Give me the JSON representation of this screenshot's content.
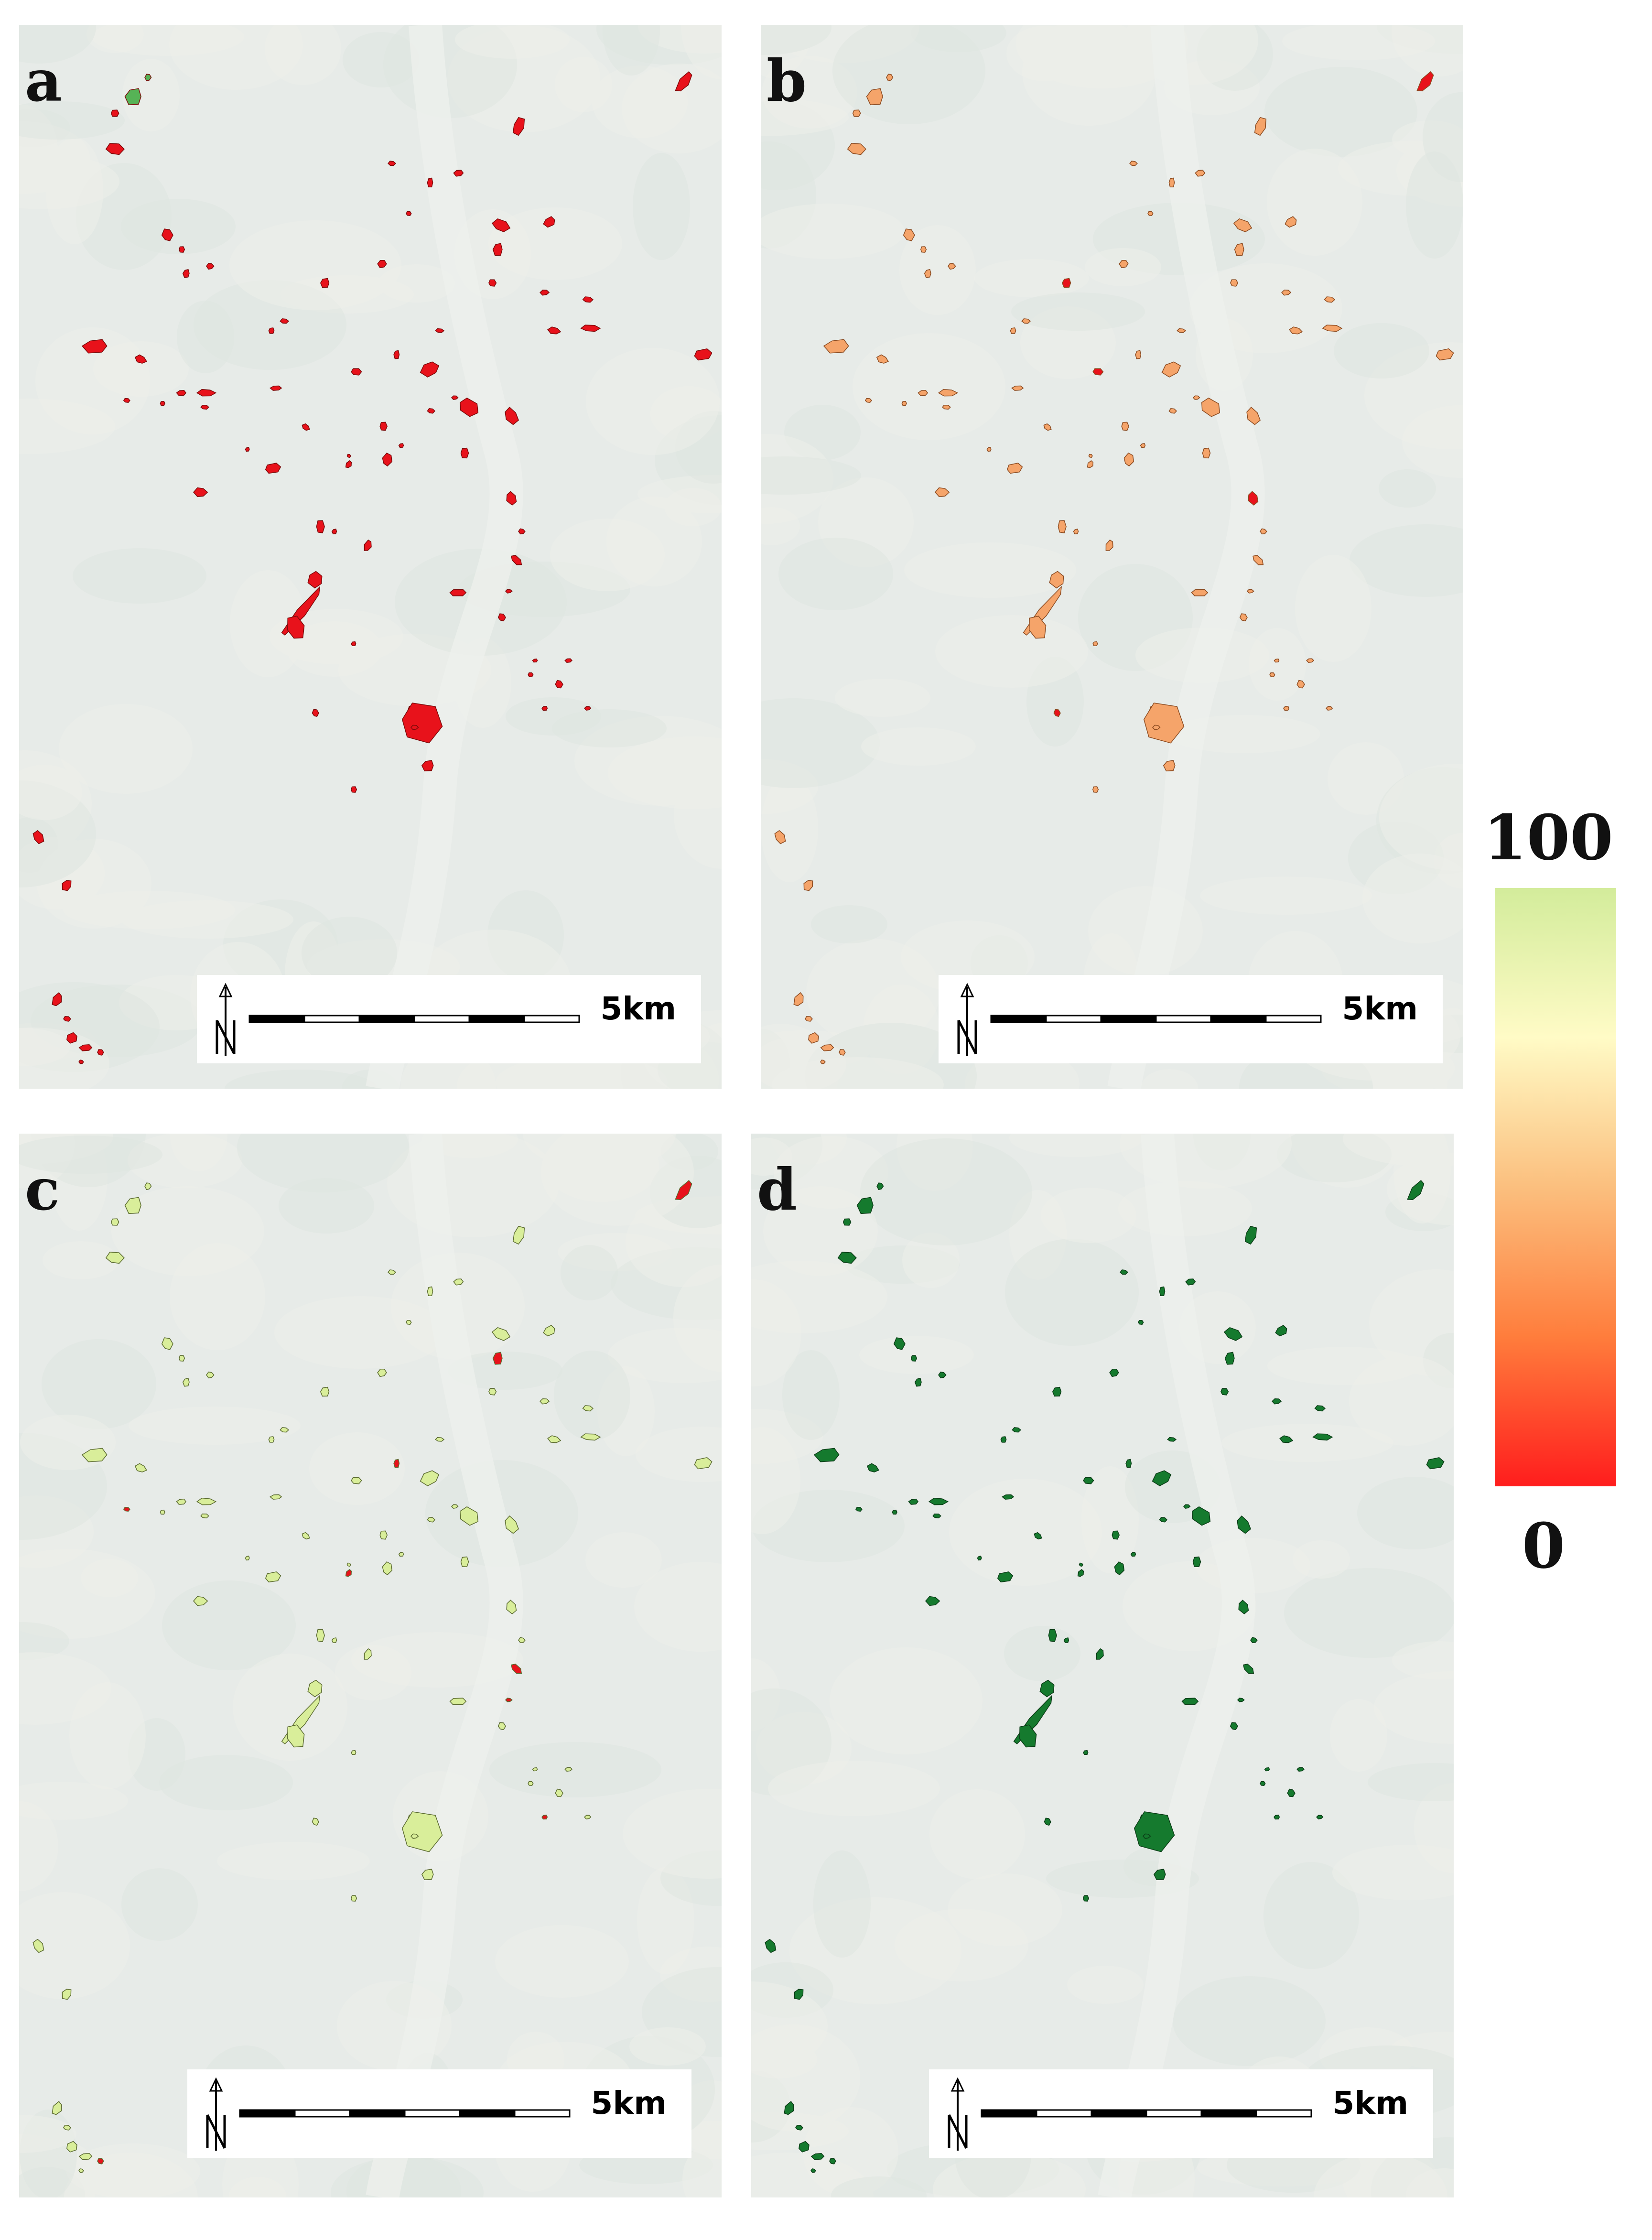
{
  "panels": [
    {
      "id": "a",
      "label": "a",
      "fill": "#e8121b",
      "stroke": "#7a0a0a",
      "accent": "#56b356"
    },
    {
      "id": "b",
      "label": "b",
      "fill": "#f5a46a",
      "stroke": "#8a4a20",
      "accent": "#e8121b"
    },
    {
      "id": "c",
      "label": "c",
      "fill": "#d9ee9a",
      "stroke": "#5a6a30",
      "accent": "#e8121b"
    },
    {
      "id": "d",
      "label": "d",
      "fill": "#157a2e",
      "stroke": "#0b3b16",
      "accent": "#f3e7a6"
    }
  ],
  "scale_bar": {
    "label": "5km"
  },
  "legend": {
    "max_label": "100",
    "min_label": "0",
    "colors": [
      "#d3ec9b",
      "#fffbc6",
      "#fbbf7e",
      "#ff7d3c",
      "#ff1d1d"
    ]
  }
}
